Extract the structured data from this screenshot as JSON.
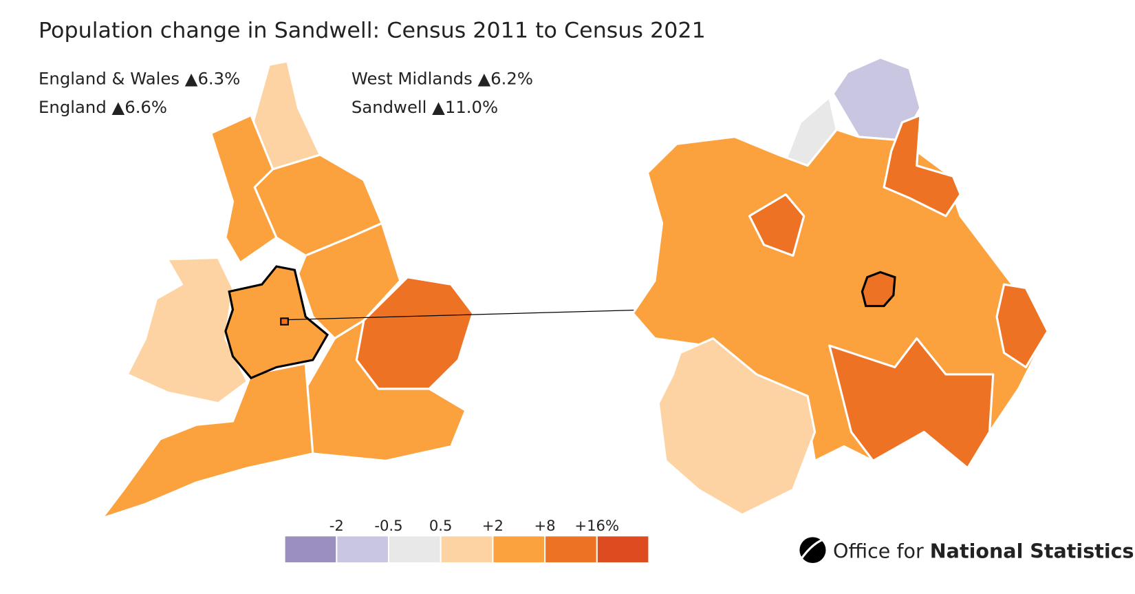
{
  "title": "Population change in Sandwell: Census 2011 to Census 2021",
  "stats": [
    "England & Wales ▲6.3%",
    "England ▲6.6%",
    "West Midlands ▲6.2%",
    "Sandwell ▲11.0%"
  ],
  "legend": {
    "labels": [
      "-2",
      "-0.5",
      "0.5",
      "+2",
      "+8",
      "+16%"
    ],
    "colors": [
      "#9b8fc0",
      "#c8c6e0",
      "#e8e8e8",
      "#fdd3a3",
      "#fba23e",
      "#ee7223",
      "#dd4b21"
    ]
  },
  "logo": {
    "text": [
      "Office for",
      "National Statistics"
    ]
  }
}
